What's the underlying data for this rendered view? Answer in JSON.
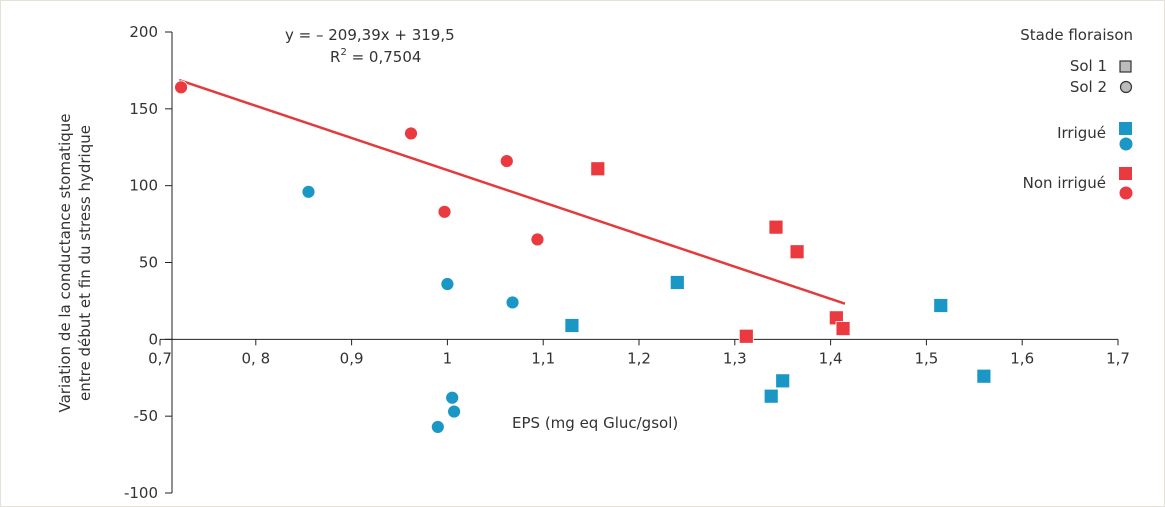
{
  "chart_data": {
    "type": "scatter",
    "xlabel": "EPS (mg eq Gluc/gsol)",
    "ylabel_line1": "Variation de la conductance stomatique",
    "ylabel_line2": "entre début et fin du stress hydrique",
    "xlim": [
      0.7,
      1.7
    ],
    "ylim": [
      -100,
      200
    ],
    "x_ticks": [
      0.7,
      0.8,
      0.9,
      1.0,
      1.1,
      1.2,
      1.3,
      1.4,
      1.5,
      1.6,
      1.7
    ],
    "x_tick_labels": [
      "0,7",
      "0, 8",
      "0,9",
      "1",
      "1,1",
      "1,2",
      "1,3",
      "1,4",
      "1,5",
      "1,6",
      "1,7"
    ],
    "y_ticks": [
      -100,
      -50,
      0,
      50,
      100,
      150,
      200
    ],
    "y_tick_labels": [
      "-100",
      "-50",
      "0",
      "50",
      "100",
      "150",
      "200"
    ],
    "grid": false,
    "legend_position": "top-right",
    "legend": {
      "title": "Stade floraison",
      "sol1": "Sol 1",
      "sol2": "Sol 2",
      "irrigue": "Irrigué",
      "non_irrigue": "Non irrigué"
    },
    "regression": {
      "equation": "y = – 209,39x + 319,5",
      "r2_prefix": "R",
      "r2_sup": "2",
      "r2_value": " = 0,7504",
      "slope": -209.39,
      "intercept": 319.5,
      "x_range": [
        0.72,
        1.415
      ],
      "color": "#e33b3b"
    },
    "colors": {
      "irrigue": "#1b97c6",
      "non_irrigue": "#ea3a3f",
      "legend_gray": "#bcbcbc"
    },
    "series": [
      {
        "name": "Irrigué",
        "shape": "circle",
        "points": [
          [
            0.855,
            96
          ],
          [
            1.0,
            36
          ],
          [
            1.068,
            24
          ],
          [
            1.005,
            -38
          ],
          [
            1.007,
            -47
          ],
          [
            0.99,
            -57
          ]
        ]
      },
      {
        "name": "Irrigué",
        "shape": "square",
        "points": [
          [
            1.13,
            9
          ],
          [
            1.24,
            37
          ],
          [
            1.338,
            -37
          ],
          [
            1.35,
            -27
          ],
          [
            1.515,
            22
          ],
          [
            1.56,
            -24
          ]
        ]
      },
      {
        "name": "Non irrigué",
        "shape": "circle",
        "points": [
          [
            0.722,
            164
          ],
          [
            0.962,
            134
          ],
          [
            0.997,
            83
          ],
          [
            1.062,
            116
          ],
          [
            1.094,
            65
          ]
        ]
      },
      {
        "name": "Non irrigué",
        "shape": "square",
        "points": [
          [
            1.157,
            111
          ],
          [
            1.312,
            2
          ],
          [
            1.343,
            73
          ],
          [
            1.365,
            57
          ],
          [
            1.406,
            14
          ],
          [
            1.413,
            7
          ]
        ]
      }
    ]
  }
}
